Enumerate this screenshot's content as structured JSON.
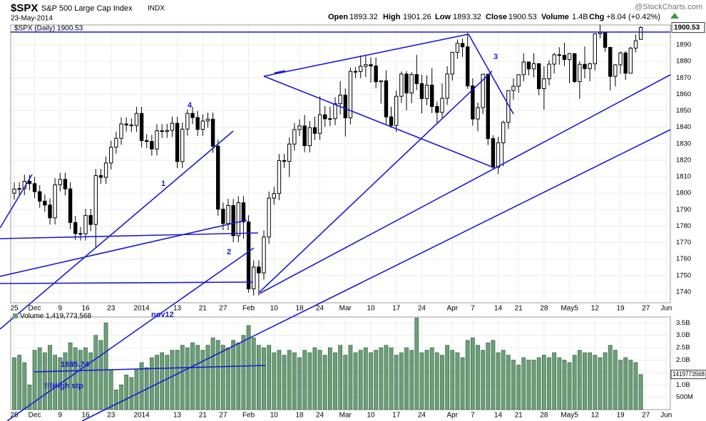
{
  "header": {
    "symbol": "$SPX",
    "name": "S&P 500 Large Cap Index",
    "exchange": "INDX",
    "date": "23-May-2014",
    "open_label": "Open",
    "open": 1893.32,
    "high_label": "High",
    "high": 1901.26,
    "low_label": "Low",
    "low": 1893.32,
    "close_label": "Close",
    "close": 1900.53,
    "volume_label": "Volume",
    "volume": "1.4B",
    "chg_label": "Chg",
    "chg": "+8.04",
    "chg_pct": "(+0.42%)",
    "credit": "@StockCharts.com"
  },
  "chart_data": [
    {
      "type": "candlestick",
      "legend": "$SPX (Daily) 1900.53",
      "color": "#000000",
      "grid": true,
      "annotations": [
        "4",
        "1",
        "2",
        "3",
        "nov12",
        "1685.74",
        "!!!High stp"
      ],
      "xlim": [
        -0.7,
        128.8
      ],
      "xticks": [
        {
          "value": 0,
          "label": "25"
        },
        {
          "value": 4,
          "label": "Dec"
        },
        {
          "value": 9,
          "label": "9"
        },
        {
          "value": 14,
          "label": "16"
        },
        {
          "value": 19,
          "label": "23"
        },
        {
          "value": 25,
          "label": "2014"
        },
        {
          "value": 32,
          "label": "13"
        },
        {
          "value": 37,
          "label": "21"
        },
        {
          "value": 41,
          "label": "27"
        },
        {
          "value": 46,
          "label": "Feb"
        },
        {
          "value": 51,
          "label": "10"
        },
        {
          "value": 56,
          "label": "18"
        },
        {
          "value": 60,
          "label": "24"
        },
        {
          "value": 65,
          "label": "Mar"
        },
        {
          "value": 70,
          "label": "10"
        },
        {
          "value": 75,
          "label": "17"
        },
        {
          "value": 80,
          "label": "24"
        },
        {
          "value": 86,
          "label": "Apr"
        },
        {
          "value": 90,
          "label": "7"
        },
        {
          "value": 95,
          "label": "14"
        },
        {
          "value": 99,
          "label": "21"
        },
        {
          "value": 104,
          "label": "28"
        },
        {
          "value": 109,
          "label": "May5"
        },
        {
          "value": 114,
          "label": "12"
        },
        {
          "value": 119,
          "label": "19"
        },
        {
          "value": 124,
          "label": "27"
        },
        {
          "value": 128,
          "label": "Jun"
        }
      ],
      "ylim": [
        1733.5,
        1902.1
      ],
      "yticks": [
        1740,
        1750,
        1760,
        1770,
        1780,
        1790,
        1800,
        1810,
        1820,
        1830,
        1840,
        1850,
        1860,
        1870,
        1880,
        1890
      ],
      "candles": [
        [
          1800,
          1806.5,
          1796,
          1802.5
        ],
        [
          1802.5,
          1806.8,
          1798.5,
          1802.8
        ],
        [
          1802.8,
          1811.2,
          1798.8,
          1807.2
        ],
        [
          1807.2,
          1811.2,
          1801.8,
          1805.8
        ],
        [
          1805.8,
          1809.8,
          1796.9,
          1800.9
        ],
        [
          1800.9,
          1804.9,
          1791.2,
          1795.2
        ],
        [
          1795.2,
          1799.2,
          1788.8,
          1792.8
        ],
        [
          1792.8,
          1796.8,
          1781,
          1785
        ],
        [
          1785,
          1809.1,
          1781,
          1805.1
        ],
        [
          1805.1,
          1812.4,
          1801.1,
          1808.4
        ],
        [
          1808.4,
          1812.4,
          1798.6,
          1802.6
        ],
        [
          1802.6,
          1806.6,
          1778.2,
          1782.2
        ],
        [
          1782.2,
          1786.2,
          1771.5,
          1775.5
        ],
        [
          1775.5,
          1779.5,
          1771.3,
          1775.3
        ],
        [
          1775.3,
          1790.5,
          1771.3,
          1786.5
        ],
        [
          1786.5,
          1790.5,
          1777,
          1781
        ],
        [
          1781,
          1814.7,
          1767,
          1810.7
        ],
        [
          1810.7,
          1814.7,
          1805.6,
          1809.6
        ],
        [
          1809.6,
          1822.3,
          1805.6,
          1818.3
        ],
        [
          1818.3,
          1831.9,
          1814.3,
          1827.9
        ],
        [
          1827.9,
          1837.3,
          1823.9,
          1833.3
        ],
        [
          1833.3,
          1846,
          1829.3,
          1842
        ],
        [
          1842,
          1846,
          1837.4,
          1841.4
        ],
        [
          1841.4,
          1845.4,
          1837.1,
          1841.1
        ],
        [
          1841.1,
          1852.4,
          1837.1,
          1848.4
        ],
        [
          1848.4,
          1852.4,
          1827.9,
          1831.9
        ],
        [
          1831.9,
          1835.9,
          1827.4,
          1831.4
        ],
        [
          1831.4,
          1835.4,
          1822.8,
          1826.8
        ],
        [
          1826.8,
          1841.9,
          1822.8,
          1837.9
        ],
        [
          1837.9,
          1841.9,
          1833.5,
          1837.5
        ],
        [
          1837.5,
          1842.1,
          1833.5,
          1838.1
        ],
        [
          1838.1,
          1846.4,
          1834.1,
          1842.4
        ],
        [
          1842.4,
          1846.4,
          1815.2,
          1819.2
        ],
        [
          1819.2,
          1842.9,
          1815.2,
          1838.9
        ],
        [
          1838.9,
          1850.8,
          1834.9,
          1848.4
        ],
        [
          1848.4,
          1852.4,
          1841.9,
          1845.9
        ],
        [
          1845.9,
          1849.9,
          1834.7,
          1838.7
        ],
        [
          1838.7,
          1847.8,
          1834.7,
          1843.8
        ],
        [
          1843.8,
          1848.9,
          1839.8,
          1844.9
        ],
        [
          1844.9,
          1848.9,
          1824.5,
          1828.5
        ],
        [
          1828.5,
          1832.5,
          1786.3,
          1790.3
        ],
        [
          1790.3,
          1794.3,
          1777.6,
          1781.6
        ],
        [
          1781.6,
          1796.5,
          1777.6,
          1792.5
        ],
        [
          1792.5,
          1796.5,
          1770.2,
          1774.2
        ],
        [
          1774.2,
          1798.2,
          1770.2,
          1794.2
        ],
        [
          1794.2,
          1798.2,
          1772.3,
          1782.6
        ],
        [
          1782.6,
          1786.6,
          1739.7,
          1741.9
        ],
        [
          1741.9,
          1759.2,
          1737.9,
          1755.2
        ],
        [
          1755.2,
          1759.2,
          1737.9,
          1751.6
        ],
        [
          1751.6,
          1777.4,
          1747.6,
          1773.4
        ],
        [
          1773.4,
          1801,
          1769.4,
          1797
        ],
        [
          1797,
          1803.8,
          1793,
          1799.8
        ],
        [
          1799.8,
          1823.8,
          1795.8,
          1819.8
        ],
        [
          1819.8,
          1823.8,
          1815.3,
          1819.3
        ],
        [
          1819.3,
          1833.8,
          1809.8,
          1829.8
        ],
        [
          1829.8,
          1842.6,
          1825.8,
          1838.6
        ],
        [
          1838.6,
          1844.8,
          1834.6,
          1840.8
        ],
        [
          1840.8,
          1847.5,
          1824.8,
          1828.8
        ],
        [
          1828.8,
          1843.8,
          1824.8,
          1839.8
        ],
        [
          1839.8,
          1846.5,
          1832.3,
          1836.3
        ],
        [
          1836.3,
          1858.7,
          1832.3,
          1847.6
        ],
        [
          1847.6,
          1852.9,
          1840.2,
          1845.1
        ],
        [
          1845.1,
          1852.6,
          1840.7,
          1845.2
        ],
        [
          1845.2,
          1858.3,
          1841.2,
          1854.3
        ],
        [
          1854.3,
          1867.9,
          1847.7,
          1859.5
        ],
        [
          1859.5,
          1863.5,
          1834.4,
          1845.7
        ],
        [
          1845.7,
          1876.2,
          1841.7,
          1873.9
        ],
        [
          1873.9,
          1876.5,
          1869.8,
          1873.8
        ],
        [
          1873.8,
          1883.6,
          1869.8,
          1877
        ],
        [
          1877,
          1883.6,
          1870.5,
          1878
        ],
        [
          1878,
          1882.4,
          1867.1,
          1877.2
        ],
        [
          1877.2,
          1882.4,
          1863.6,
          1867.6
        ],
        [
          1867.6,
          1868.4,
          1854.4,
          1868.2
        ],
        [
          1868.2,
          1874.4,
          1841.9,
          1846.3
        ],
        [
          1846.3,
          1852.4,
          1839.6,
          1841.1
        ],
        [
          1841.1,
          1862.3,
          1837.1,
          1858.8
        ],
        [
          1858.8,
          1873.8,
          1854.8,
          1872.3
        ],
        [
          1872.3,
          1874.1,
          1850.3,
          1860.8
        ],
        [
          1860.8,
          1873.5,
          1854.6,
          1872
        ],
        [
          1872,
          1883.9,
          1862.5,
          1866.5
        ],
        [
          1866.5,
          1871.9,
          1848.4,
          1857.4
        ],
        [
          1857.4,
          1871.5,
          1853.4,
          1865.6
        ],
        [
          1865.6,
          1875.9,
          1848.6,
          1852.6
        ],
        [
          1852.6,
          1855.6,
          1842.1,
          1849
        ],
        [
          1849,
          1866.6,
          1845,
          1857.6
        ],
        [
          1857.6,
          1877,
          1853.6,
          1872.3
        ],
        [
          1872.3,
          1885.8,
          1868.3,
          1885.5
        ],
        [
          1885.5,
          1893.2,
          1881.5,
          1890.9
        ],
        [
          1890.9,
          1893.8,
          1882.6,
          1888.8
        ],
        [
          1888.8,
          1897.3,
          1863.3,
          1865.1
        ],
        [
          1865.1,
          1869.6,
          1841,
          1845
        ],
        [
          1845,
          1854.9,
          1837.5,
          1851.9
        ],
        [
          1851.9,
          1872.4,
          1847.9,
          1872.2
        ],
        [
          1872.2,
          1872.5,
          1829.2,
          1833.1
        ],
        [
          1833.1,
          1835.1,
          1814.4,
          1815.7
        ],
        [
          1815.7,
          1834.2,
          1811.7,
          1830.6
        ],
        [
          1830.6,
          1844,
          1816.3,
          1843
        ],
        [
          1843,
          1862.3,
          1839,
          1862.3
        ],
        [
          1862.3,
          1869.6,
          1856.7,
          1864.9
        ],
        [
          1864.9,
          1872,
          1860.9,
          1871.9
        ],
        [
          1871.9,
          1884.9,
          1867.9,
          1879.6
        ],
        [
          1879.6,
          1879.8,
          1871.4,
          1875.4
        ],
        [
          1875.4,
          1884.9,
          1870.2,
          1878.6
        ],
        [
          1878.6,
          1878.6,
          1859.4,
          1863.4
        ],
        [
          1863.4,
          1877.1,
          1850.6,
          1869.4
        ],
        [
          1869.4,
          1880.6,
          1865.4,
          1878.3
        ],
        [
          1878.3,
          1885.2,
          1872.7,
          1884
        ],
        [
          1884,
          1888.6,
          1878,
          1883.7
        ],
        [
          1883.7,
          1891.3,
          1877.1,
          1881.1
        ],
        [
          1881.1,
          1885,
          1866.8,
          1884.7
        ],
        [
          1884.7,
          1885,
          1866.8,
          1867.7
        ],
        [
          1867.7,
          1880,
          1857.2,
          1878.2
        ],
        [
          1878.2,
          1889.1,
          1869.7,
          1875.6
        ],
        [
          1875.6,
          1879.3,
          1867.9,
          1878.5
        ],
        [
          1878.5,
          1897,
          1874.5,
          1896.7
        ],
        [
          1896.7,
          1902.2,
          1893.9,
          1897.5
        ],
        [
          1897.5,
          1897.5,
          1885.8,
          1888.5
        ],
        [
          1888.5,
          1888.7,
          1862.4,
          1870.9
        ],
        [
          1870.9,
          1878.3,
          1864.8,
          1877.9
        ],
        [
          1877.9,
          1886,
          1872.4,
          1885.1
        ],
        [
          1885.1,
          1886.3,
          1868.8,
          1872.8
        ],
        [
          1872.8,
          1888.8,
          1872.7,
          1888
        ],
        [
          1888,
          1896.3,
          1885.4,
          1892.5
        ],
        [
          1893.32,
          1901.26,
          1893.32,
          1900.53
        ]
      ]
    },
    {
      "type": "bar",
      "legend": "Volume 1,419,773,568",
      "color": "#6b9f78",
      "xlim": [
        -0.7,
        128.8
      ],
      "xticks": [
        {
          "value": 0,
          "label": "25"
        },
        {
          "value": 4,
          "label": "Dec"
        },
        {
          "value": 9,
          "label": "9"
        },
        {
          "value": 14,
          "label": "16"
        },
        {
          "value": 19,
          "label": "23"
        },
        {
          "value": 25,
          "label": "2014"
        },
        {
          "value": 32,
          "label": "13"
        },
        {
          "value": 37,
          "label": "21"
        },
        {
          "value": 41,
          "label": "27"
        },
        {
          "value": 46,
          "label": "Feb"
        },
        {
          "value": 51,
          "label": "10"
        },
        {
          "value": 56,
          "label": "18"
        },
        {
          "value": 60,
          "label": "24"
        },
        {
          "value": 65,
          "label": "Mar"
        },
        {
          "value": 70,
          "label": "10"
        },
        {
          "value": 75,
          "label": "17"
        },
        {
          "value": 80,
          "label": "24"
        },
        {
          "value": 86,
          "label": "Apr"
        },
        {
          "value": 90,
          "label": "7"
        },
        {
          "value": 95,
          "label": "14"
        },
        {
          "value": 99,
          "label": "21"
        },
        {
          "value": 104,
          "label": "28"
        },
        {
          "value": 109,
          "label": "May5"
        },
        {
          "value": 114,
          "label": "12"
        },
        {
          "value": 119,
          "label": "19"
        },
        {
          "value": 124,
          "label": "27"
        },
        {
          "value": 128,
          "label": "Jun"
        }
      ],
      "ylim": [
        0,
        3740000000.0
      ],
      "yticks": [
        {
          "value": 500000000.0,
          "label": "500M"
        },
        {
          "value": 1000000000.0,
          "label": "1.0B"
        },
        {
          "value": 1500000000.0,
          "label": "1.5B"
        },
        {
          "value": 2000000000.0,
          "label": "2.0B"
        },
        {
          "value": 2500000000.0,
          "label": "2.5B"
        },
        {
          "value": 3000000000.0,
          "label": "3.0B"
        },
        {
          "value": 3500000000.0,
          "label": "3.5B"
        }
      ],
      "values": [
        2100000000.0,
        2200000000.0,
        1900000000.0,
        1000000000.0,
        2400000000.0,
        2500000000.0,
        2300000000.0,
        2600000000.0,
        2200000000.0,
        2100000000.0,
        2300000000.0,
        2700000000.0,
        2500000000.0,
        2400000000.0,
        2500000000.0,
        2300000000.0,
        3000000000.0,
        2800000000.0,
        3500000000.0,
        1600000000.0,
        800000000.0,
        1000000000.0,
        1400000000.0,
        1300000000.0,
        1600000000.0,
        1900000000.0,
        1700000000.0,
        2100000000.0,
        2200000000.0,
        2300000000.0,
        2200000000.0,
        2400000000.0,
        2400000000.0,
        2600000000.0,
        2500000000.0,
        2700000000.0,
        2600000000.0,
        2400000000.0,
        2600000000.0,
        2900000000.0,
        2800000000.0,
        2600000000.0,
        2500000000.0,
        2800000000.0,
        2700000000.0,
        3000000000.0,
        3400000000.0,
        2900000000.0,
        2600000000.0,
        2500000000.0,
        2600000000.0,
        2300000000.0,
        2400000000.0,
        2200000000.0,
        2400000000.0,
        2300000000.0,
        2100000000.0,
        2400000000.0,
        2300000000.0,
        2500000000.0,
        2400000000.0,
        2200000000.0,
        2500000000.0,
        2300000000.0,
        2600000000.0,
        2200000000.0,
        2600000000.0,
        2300000000.0,
        2400000000.0,
        2500000000.0,
        2300000000.0,
        2400000000.0,
        2500000000.0,
        2600000000.0,
        2500000000.0,
        2200000000.0,
        2300000000.0,
        2500000000.0,
        2400000000.0,
        3700000000.0,
        2300000000.0,
        2400000000.0,
        2500000000.0,
        2300000000.0,
        2200000000.0,
        2600000000.0,
        2400000000.0,
        2300000000.0,
        2100000000.0,
        2800000000.0,
        2900000000.0,
        2600000000.0,
        2400000000.0,
        2700000000.0,
        2800000000.0,
        2300000000.0,
        2400000000.0,
        2200000000.0,
        2000000000.0,
        1800000000.0,
        2100000000.0,
        2000000000.0,
        2000000000.0,
        2100000000.0,
        2200000000.0,
        2100000000.0,
        2300000000.0,
        2100000000.0,
        2000000000.0,
        1900000000.0,
        2200000000.0,
        2400000000.0,
        2300000000.0,
        2300000000.0,
        2200000000.0,
        2100000000.0,
        2300000000.0,
        2600000000.0,
        2400000000.0,
        2000000000.0,
        2100000000.0,
        2000000000.0,
        1900000000.0,
        1419773568
      ]
    }
  ]
}
